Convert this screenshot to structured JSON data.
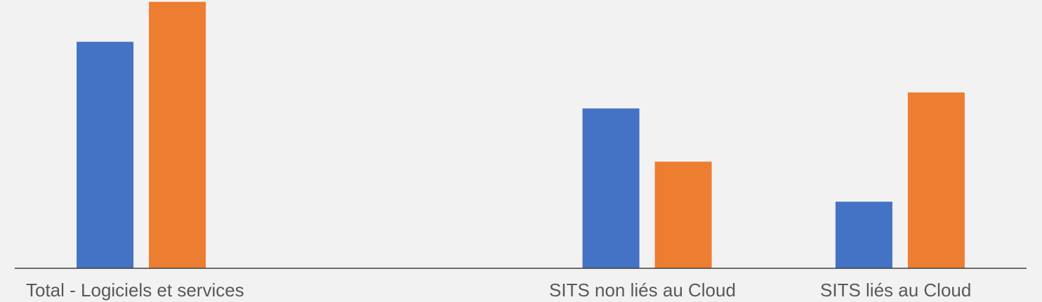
{
  "chart_data": {
    "type": "bar",
    "categories": [
      "Total - Logiciels et services",
      "",
      "SITS non liés au Cloud",
      "SITS liés au Cloud"
    ],
    "series": [
      {
        "color": "#4472c4",
        "values": [
          8.5,
          null,
          6.0,
          2.5
        ]
      },
      {
        "color": "#ed7d31",
        "values": [
          10.0,
          null,
          4.0,
          6.6
        ]
      }
    ],
    "ylim": [
      0,
      9.7
    ],
    "title": "",
    "xlabel": "",
    "ylabel": "",
    "grid": false,
    "legend": "none"
  }
}
